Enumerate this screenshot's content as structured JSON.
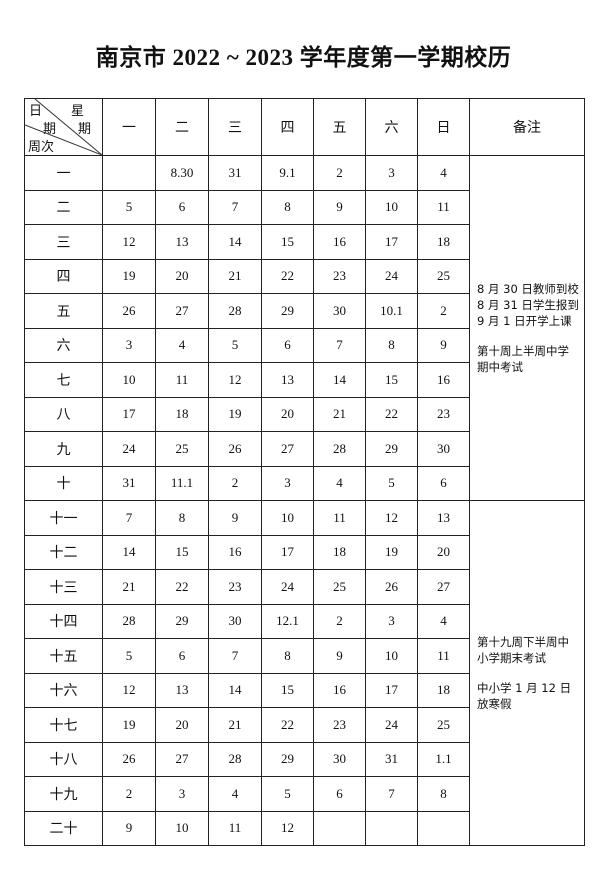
{
  "title": "南京市 2022 ~ 2023 学年度第一学期校历",
  "header": {
    "corner": {
      "ri": "日",
      "qi1": "期",
      "xing": "星",
      "qi2": "期",
      "zhouci": "周次"
    },
    "days": [
      "一",
      "二",
      "三",
      "四",
      "五",
      "六",
      "日"
    ],
    "remarks": "备注"
  },
  "weeks": [
    {
      "label": "一",
      "days": [
        "",
        "8.30",
        "31",
        "9.1",
        "2",
        "3",
        "4"
      ]
    },
    {
      "label": "二",
      "days": [
        "5",
        "6",
        "7",
        "8",
        "9",
        "10",
        "11"
      ]
    },
    {
      "label": "三",
      "days": [
        "12",
        "13",
        "14",
        "15",
        "16",
        "17",
        "18"
      ]
    },
    {
      "label": "四",
      "days": [
        "19",
        "20",
        "21",
        "22",
        "23",
        "24",
        "25"
      ]
    },
    {
      "label": "五",
      "days": [
        "26",
        "27",
        "28",
        "29",
        "30",
        "10.1",
        "2"
      ]
    },
    {
      "label": "六",
      "days": [
        "3",
        "4",
        "5",
        "6",
        "7",
        "8",
        "9"
      ]
    },
    {
      "label": "七",
      "days": [
        "10",
        "11",
        "12",
        "13",
        "14",
        "15",
        "16"
      ]
    },
    {
      "label": "八",
      "days": [
        "17",
        "18",
        "19",
        "20",
        "21",
        "22",
        "23"
      ]
    },
    {
      "label": "九",
      "days": [
        "24",
        "25",
        "26",
        "27",
        "28",
        "29",
        "30"
      ]
    },
    {
      "label": "十",
      "days": [
        "31",
        "11.1",
        "2",
        "3",
        "4",
        "5",
        "6"
      ]
    },
    {
      "label": "十一",
      "days": [
        "7",
        "8",
        "9",
        "10",
        "11",
        "12",
        "13"
      ]
    },
    {
      "label": "十二",
      "days": [
        "14",
        "15",
        "16",
        "17",
        "18",
        "19",
        "20"
      ]
    },
    {
      "label": "十三",
      "days": [
        "21",
        "22",
        "23",
        "24",
        "25",
        "26",
        "27"
      ]
    },
    {
      "label": "十四",
      "days": [
        "28",
        "29",
        "30",
        "12.1",
        "2",
        "3",
        "4"
      ]
    },
    {
      "label": "十五",
      "days": [
        "5",
        "6",
        "7",
        "8",
        "9",
        "10",
        "11"
      ]
    },
    {
      "label": "十六",
      "days": [
        "12",
        "13",
        "14",
        "15",
        "16",
        "17",
        "18"
      ]
    },
    {
      "label": "十七",
      "days": [
        "19",
        "20",
        "21",
        "22",
        "23",
        "24",
        "25"
      ]
    },
    {
      "label": "十八",
      "days": [
        "26",
        "27",
        "28",
        "29",
        "30",
        "31",
        "1.1"
      ]
    },
    {
      "label": "十九",
      "days": [
        "2",
        "3",
        "4",
        "5",
        "6",
        "7",
        "8"
      ]
    },
    {
      "label": "二十",
      "days": [
        "9",
        "10",
        "11",
        "12",
        "",
        "",
        ""
      ]
    }
  ],
  "remarks": {
    "first_half": [
      "8 月 30 日教师到校",
      "8 月 31 日学生报到",
      "9 月 1 日开学上课",
      "第十周上半周中学期中考试"
    ],
    "second_half": [
      "第十九周下半周中小学期末考试",
      "中小学 1 月 12 日放寒假"
    ]
  }
}
